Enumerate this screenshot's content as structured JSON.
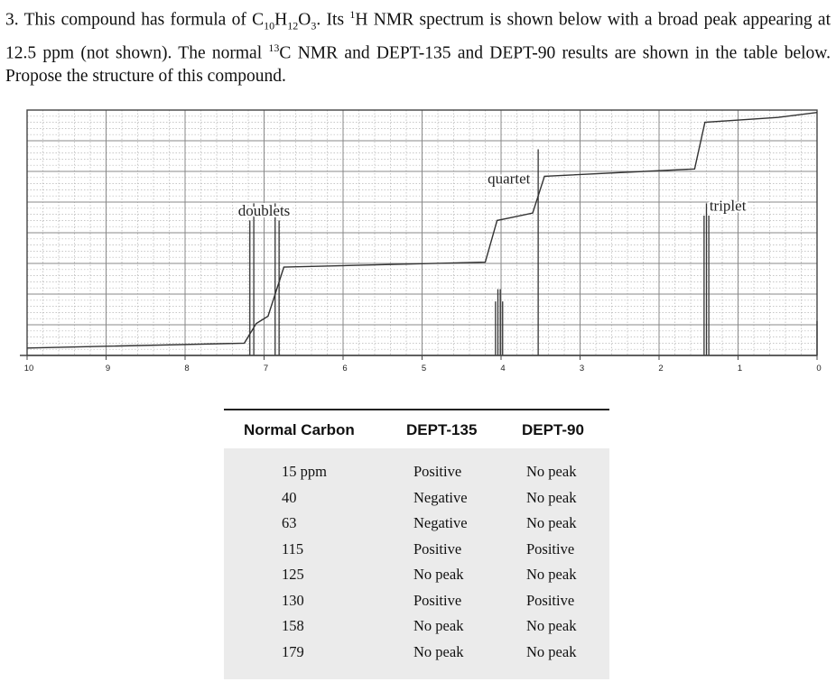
{
  "question": {
    "num": "3.",
    "t1": " This compound has formula of C",
    "s1": "10",
    "t2": "H",
    "s2": "12",
    "t3": "O",
    "s3": "3",
    "t4": ". Its ",
    "sup1": "1",
    "t5": "H NMR spectrum is shown below with a broad peak appearing at 12.5 ppm (not shown). The normal ",
    "sup2": "13",
    "t6": "C NMR and DEPT-135 and DEPT-90 results are shown in the table below. Propose the structure of this compound."
  },
  "chart_data": {
    "type": "line",
    "xlim": [
      10,
      0
    ],
    "x_ticks": [
      "10",
      "9",
      "8",
      "7",
      "6",
      "5",
      "4",
      "3",
      "2",
      "1",
      "0"
    ],
    "grid": true,
    "peaks": [
      {
        "ppm": 7.18,
        "height": 0.55
      },
      {
        "ppm": 7.13,
        "height": 0.62
      },
      {
        "ppm": 6.86,
        "height": 0.62
      },
      {
        "ppm": 6.81,
        "height": 0.55
      },
      {
        "ppm": 4.07,
        "height": 0.22
      },
      {
        "ppm": 4.04,
        "height": 0.27
      },
      {
        "ppm": 4.01,
        "height": 0.27
      },
      {
        "ppm": 3.98,
        "height": 0.22
      },
      {
        "ppm": 3.53,
        "height": 0.84
      },
      {
        "ppm": 1.43,
        "height": 0.57
      },
      {
        "ppm": 1.4,
        "height": 0.62
      },
      {
        "ppm": 1.37,
        "height": 0.57
      },
      {
        "ppm": 0.0,
        "height": 0.14
      }
    ],
    "integral": [
      {
        "ppm": 10.0,
        "level": 0.03
      },
      {
        "ppm": 7.25,
        "level": 0.05
      },
      {
        "ppm": 7.1,
        "level": 0.13
      },
      {
        "ppm": 6.95,
        "level": 0.16
      },
      {
        "ppm": 6.75,
        "level": 0.36
      },
      {
        "ppm": 4.2,
        "level": 0.38
      },
      {
        "ppm": 4.05,
        "level": 0.55
      },
      {
        "ppm": 3.9,
        "level": 0.56
      },
      {
        "ppm": 3.6,
        "level": 0.58
      },
      {
        "ppm": 3.45,
        "level": 0.73
      },
      {
        "ppm": 1.55,
        "level": 0.76
      },
      {
        "ppm": 1.42,
        "level": 0.95
      },
      {
        "ppm": 0.5,
        "level": 0.97
      },
      {
        "ppm": 0.0,
        "level": 0.99
      }
    ],
    "annotations": [
      {
        "text": "doublets",
        "ppm": 7.0,
        "y": 0.57
      },
      {
        "text": "quartet",
        "ppm": 3.9,
        "y": 0.7
      },
      {
        "text": "triplet",
        "ppm": 1.13,
        "y": 0.59
      }
    ]
  },
  "table": {
    "headers": [
      "Normal Carbon",
      "DEPT-135",
      "DEPT-90"
    ],
    "rows": [
      [
        "15 ppm",
        "Positive",
        "No peak"
      ],
      [
        "40",
        "Negative",
        "No peak"
      ],
      [
        "63",
        "Negative",
        "No peak"
      ],
      [
        "115",
        "Positive",
        "Positive"
      ],
      [
        "125",
        "No peak",
        "No peak"
      ],
      [
        "130",
        "Positive",
        "Positive"
      ],
      [
        "158",
        "No peak",
        "No peak"
      ],
      [
        "179",
        "No peak",
        "No peak"
      ]
    ]
  }
}
